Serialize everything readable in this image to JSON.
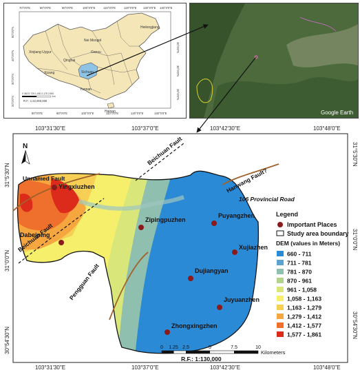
{
  "inset_china": {
    "top_ticks": [
      "70°0'0\"E",
      "80°0'0\"E",
      "90°0'0\"E",
      "100°0'0\"E",
      "110°0'0\"E",
      "120°0'0\"E",
      "130°0'0\"E",
      "140°0'0\"E"
    ],
    "bottom_ticks": [
      "80°0'0\"E",
      "90°0'0\"E",
      "100°0'0\"E",
      "110°0'0\"E",
      "120°0'0\"E",
      "130°0'0\"E"
    ],
    "left_ticks": [
      "50°0'0\"N",
      "40°0'0\"N",
      "30°0'0\"N",
      "20°0'0\"N"
    ],
    "right_ticks": [
      "40°0'0\"N",
      "30°0'0\"N",
      "20°0'0\"N"
    ],
    "regions": [
      "Xinjiang Uygur",
      "Nei Mongol",
      "Heilongjiang",
      "Qinghai",
      "Xizang",
      "Sichuan",
      "Yunnan",
      "Hainan",
      "Gansu"
    ],
    "scale_numbers": "0  362.5 725    1,450    2,175    2,900",
    "scale_unit": "km",
    "rf": "R.F.: 1:22,000,000",
    "colors": {
      "land": "#f5e6b8",
      "sichuan": "#8fc3e6",
      "border": "#555555"
    }
  },
  "inset_satellite": {
    "attribution": "Google Earth",
    "colors": {
      "base": "#4d6a3c",
      "valley": "#86916d",
      "hill": "#36532c"
    }
  },
  "main_map": {
    "top_ticks": [
      "103°31'30\"E",
      "103°37'0\"E",
      "103°42'30\"E",
      "103°48'0\"E"
    ],
    "bottom_ticks": [
      "103°31'30\"E",
      "103°37'0\"E",
      "103°42'30\"E",
      "103°48'0\"E"
    ],
    "left_ticks": [
      "31°5'30\"N",
      "31°0'0\"N",
      "30°54'30\"N"
    ],
    "right_ticks": [
      "31°5'30\"N",
      "31°0'0\"N",
      "30°54'30\"N"
    ],
    "north": "N",
    "places": [
      "Yingxiuzhen",
      "Dabeiping",
      "Zipingpuzhen",
      "Puyangzhen",
      "Xujiazhen",
      "Dujiangyan",
      "Juyuanzhen",
      "Zhongxingzhen"
    ],
    "faults": [
      "Unnamed Fault",
      "Beichuan Fault",
      "Beichuan Fault",
      "Hanwang Fault?",
      "Pengguan Fault"
    ],
    "road": "106 Provincial Road",
    "legend": {
      "title": "Legend",
      "places_label": "Important Places",
      "boundary_label": "Study area boundary",
      "dem_title": "DEM (values in Meters)",
      "classes": [
        {
          "label": "660 - 711",
          "color": "#2b8ad6"
        },
        {
          "label": "711 - 781",
          "color": "#5ea3d0"
        },
        {
          "label": "781 - 870",
          "color": "#8fbfae"
        },
        {
          "label": "870 - 961",
          "color": "#b4d48c"
        },
        {
          "label": "961 - 1,058",
          "color": "#d9e77a"
        },
        {
          "label": "1,058 - 1,163",
          "color": "#f6ef6b"
        },
        {
          "label": "1,163 - 1,279",
          "color": "#f7cf55"
        },
        {
          "label": "1,279 - 1,412",
          "color": "#f5a63f"
        },
        {
          "label": "1,412 - 1,577",
          "color": "#ef6f2c"
        },
        {
          "label": "1,577 - 1,861",
          "color": "#dc2a1b"
        }
      ]
    },
    "scale_numbers": [
      "0",
      "1.25",
      "2.5",
      "5",
      "7.5",
      "10"
    ],
    "scale_unit": "Kilometers",
    "rf": "R.F.: 1:130,000",
    "colors": {
      "place": "#8b1a1a",
      "fault": "#a0622a",
      "frame": "#222222"
    }
  }
}
